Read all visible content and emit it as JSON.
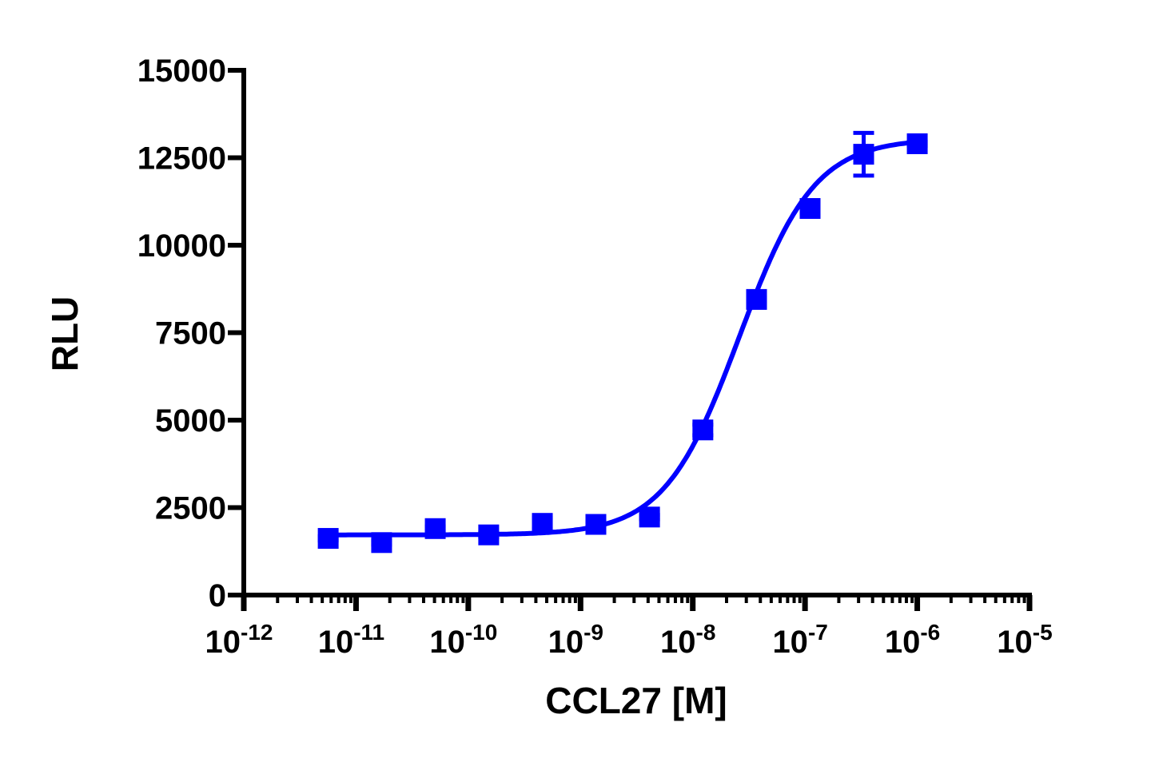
{
  "chart_data": {
    "type": "scatter",
    "title": "",
    "xlabel": "CCL27 [M]",
    "ylabel": "RLU",
    "xscale": "log",
    "xlim": [
      1e-12,
      1e-05
    ],
    "ylim": [
      0,
      15000
    ],
    "x_ticks": [
      1e-12,
      1e-11,
      1e-10,
      1e-09,
      1e-08,
      1e-07,
      1e-06,
      1e-05
    ],
    "x_tick_labels": [
      {
        "base": "10",
        "exp": "-12"
      },
      {
        "base": "10",
        "exp": "-11"
      },
      {
        "base": "10",
        "exp": "-10"
      },
      {
        "base": "10",
        "exp": "-9"
      },
      {
        "base": "10",
        "exp": "-8"
      },
      {
        "base": "10",
        "exp": "-7"
      },
      {
        "base": "10",
        "exp": "-6"
      },
      {
        "base": "10",
        "exp": "-5"
      }
    ],
    "y_ticks": [
      0,
      2500,
      5000,
      7500,
      10000,
      12500,
      15000
    ],
    "y_tick_labels": [
      "0",
      "2500",
      "5000",
      "7500",
      "10000",
      "12500",
      "15000"
    ],
    "grid": false,
    "color": "#0000ff",
    "marker": "square",
    "points": [
      {
        "x": 5.65e-12,
        "y": 1620,
        "err": 60
      },
      {
        "x": 1.69e-11,
        "y": 1500,
        "err": 60
      },
      {
        "x": 5.08e-11,
        "y": 1900,
        "err": 60
      },
      {
        "x": 1.52e-10,
        "y": 1720,
        "err": 60
      },
      {
        "x": 4.57e-10,
        "y": 2050,
        "err": 150
      },
      {
        "x": 1.37e-09,
        "y": 2020,
        "err": 60
      },
      {
        "x": 4.12e-09,
        "y": 2230,
        "err": 60
      },
      {
        "x": 1.23e-08,
        "y": 4720,
        "err": 150
      },
      {
        "x": 3.7e-08,
        "y": 8450,
        "err": 60
      },
      {
        "x": 1.11e-07,
        "y": 11050,
        "err": 200
      },
      {
        "x": 3.33e-07,
        "y": 12600,
        "err": 610
      },
      {
        "x": 1e-06,
        "y": 12900,
        "err": 60
      }
    ],
    "fit": {
      "model": "four-parameter logistic",
      "bottom": 1720,
      "top": 13050,
      "ec50": 2.6e-08,
      "hill": 1.3
    }
  }
}
